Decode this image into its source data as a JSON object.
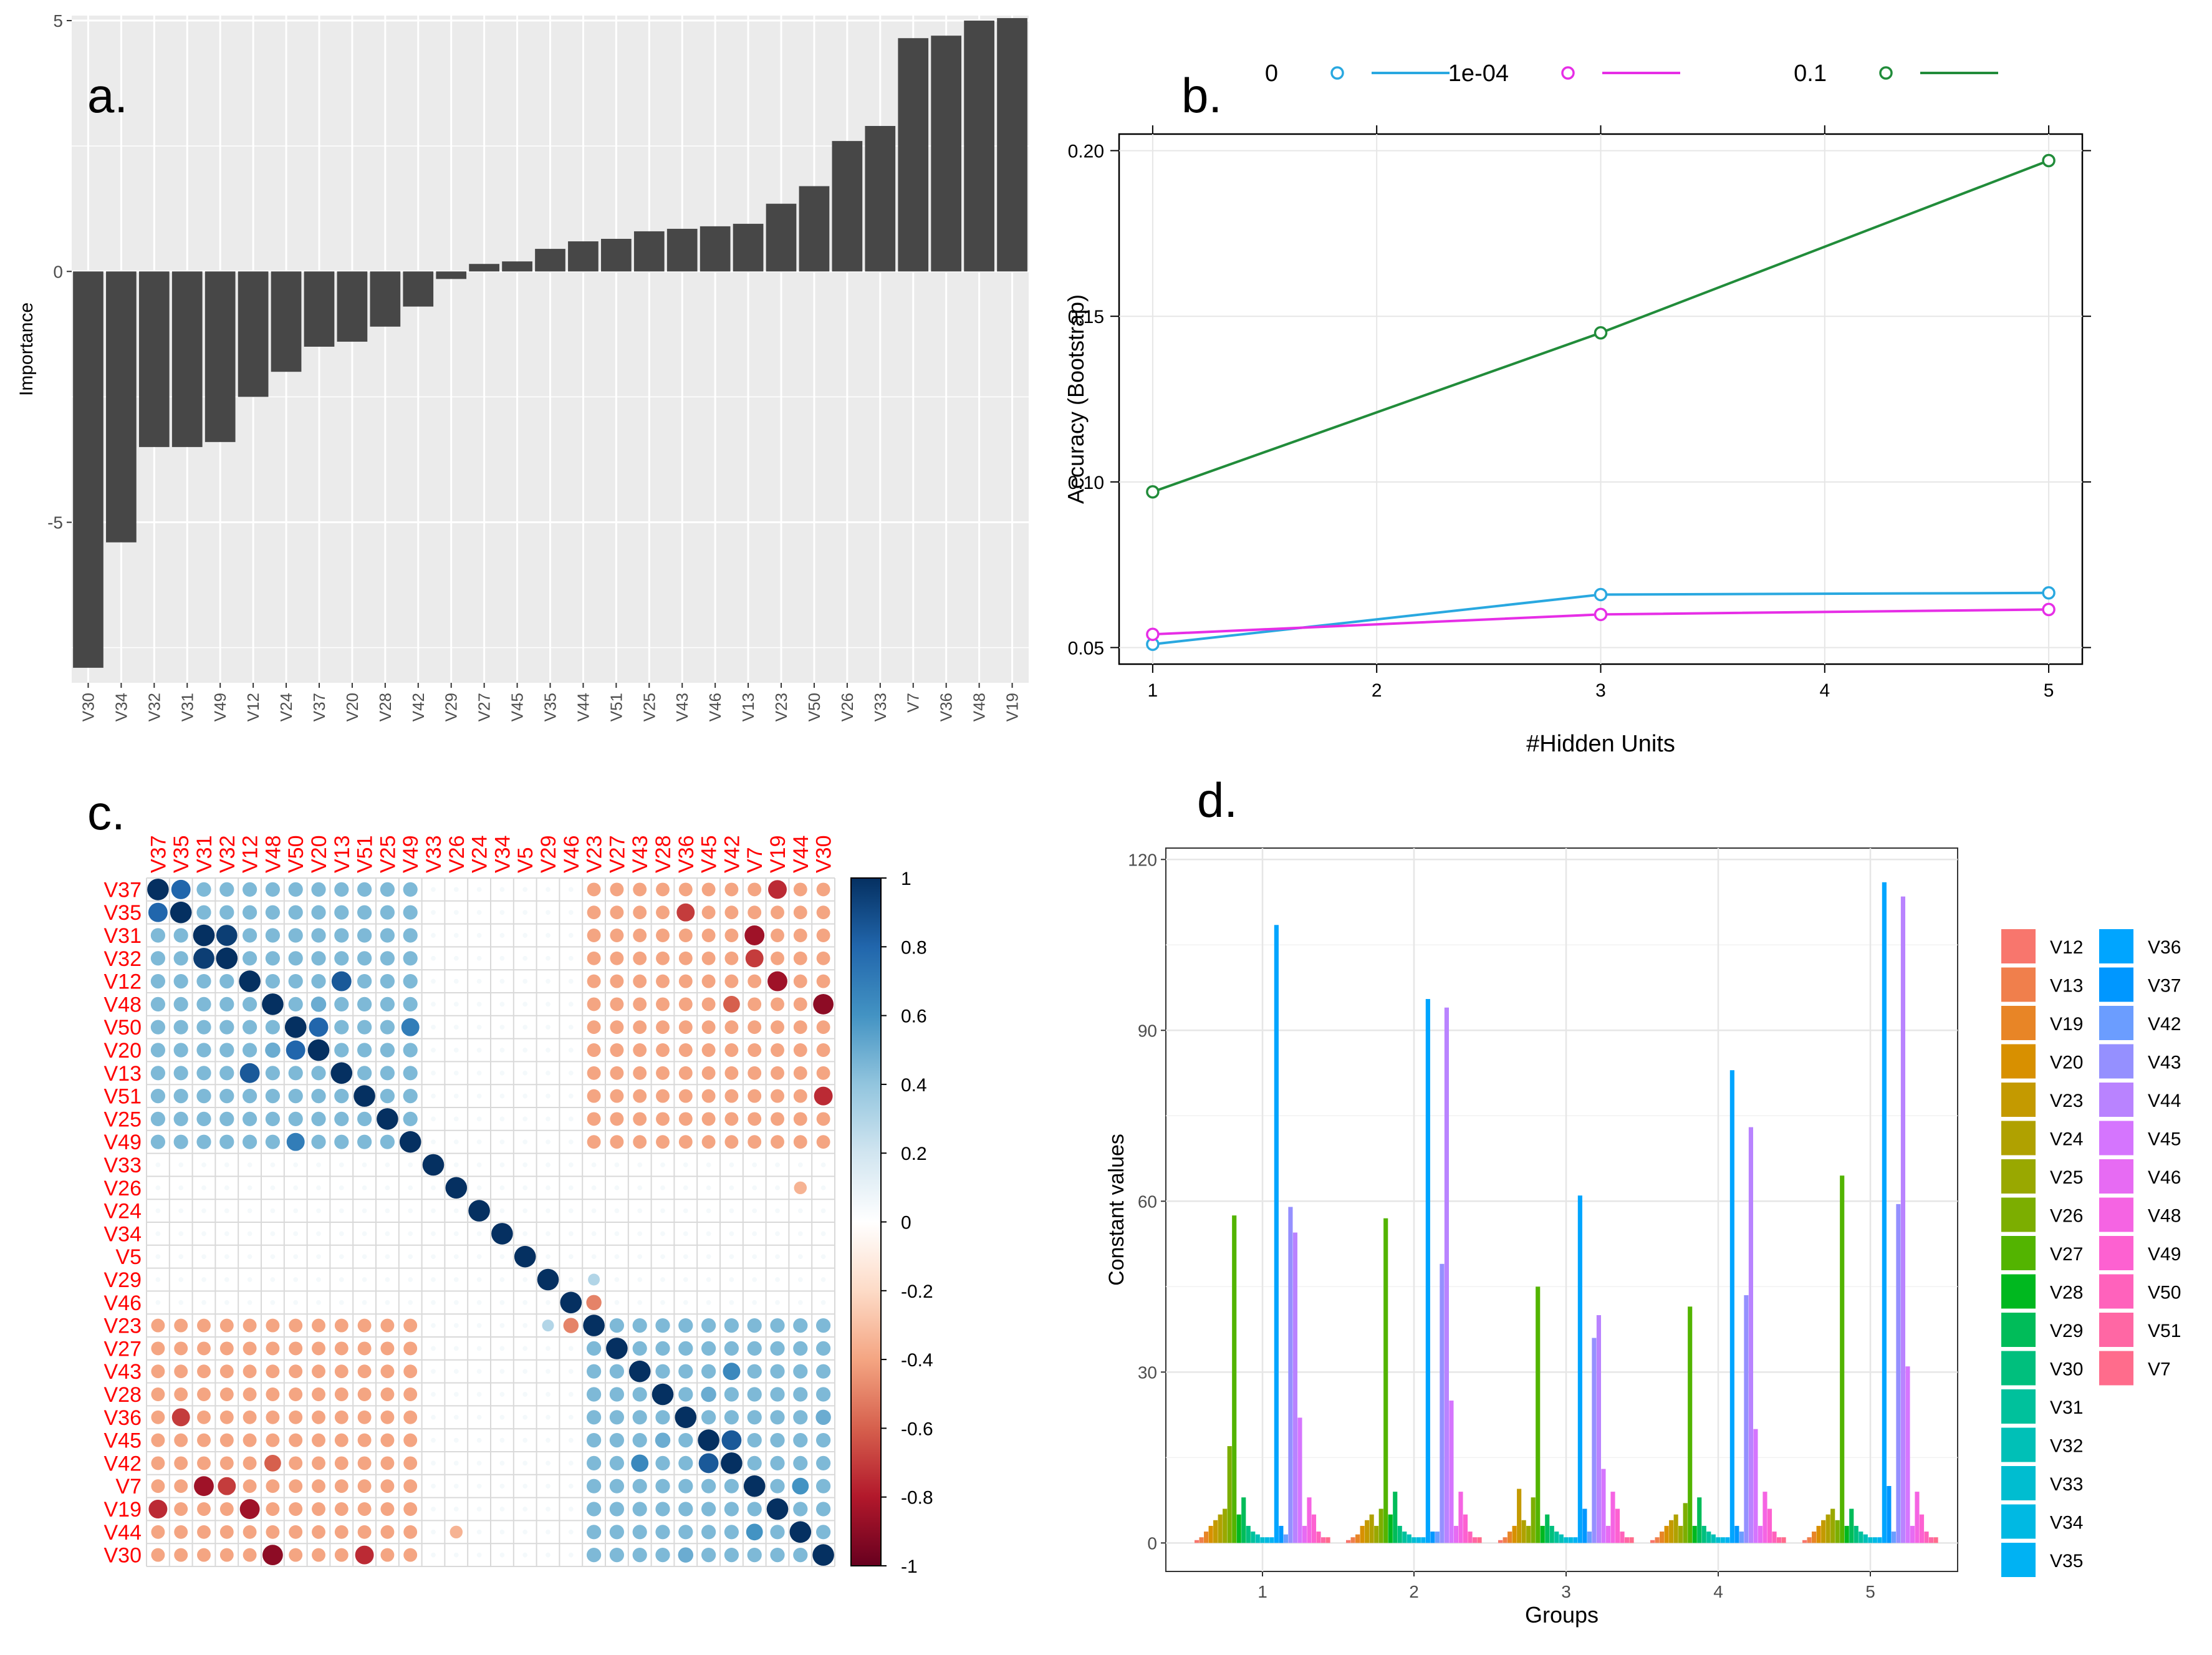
{
  "panel_labels": {
    "a": "a.",
    "b": "b.",
    "c": "c.",
    "d": "d."
  },
  "chart_data": [
    {
      "panel": "a",
      "type": "bar",
      "title": "",
      "xlabel": "",
      "ylabel": "Importance",
      "ylim": [
        -8.2,
        5.1
      ],
      "yticks": [
        -5,
        0,
        5
      ],
      "categories": [
        "V30",
        "V34",
        "V32",
        "V31",
        "V49",
        "V12",
        "V24",
        "V37",
        "V20",
        "V28",
        "V42",
        "V29",
        "V27",
        "V45",
        "V35",
        "V44",
        "V51",
        "V25",
        "V43",
        "V46",
        "V13",
        "V23",
        "V50",
        "V26",
        "V33",
        "V7",
        "V36",
        "V48",
        "V19"
      ],
      "values": [
        -7.9,
        -5.4,
        -3.5,
        -3.5,
        -3.4,
        -2.5,
        -2.0,
        -1.5,
        -1.4,
        -1.1,
        -0.7,
        -0.15,
        0.15,
        0.2,
        0.45,
        0.6,
        0.65,
        0.8,
        0.85,
        0.9,
        0.95,
        1.35,
        1.7,
        2.6,
        2.9,
        4.65,
        4.7,
        5.0,
        5.05
      ],
      "grid": true
    },
    {
      "panel": "b",
      "type": "line",
      "title": "",
      "xlabel": "#Hidden Units",
      "ylabel": "Accuracy (Bootstrap)",
      "xlim": [
        0.85,
        5.15
      ],
      "ylim": [
        0.045,
        0.205
      ],
      "xticks": [
        1,
        2,
        3,
        4,
        5
      ],
      "yticks": [
        0.05,
        0.1,
        0.15,
        0.2
      ],
      "ytick_labels": [
        "0.05",
        "0.10",
        "0.15",
        "0.20"
      ],
      "x": [
        1,
        3,
        5
      ],
      "series": [
        {
          "name": "0",
          "color": "#29a8e0",
          "values": [
            0.051,
            0.066,
            0.0665
          ]
        },
        {
          "name": "1e-04",
          "color": "#e62ee6",
          "values": [
            0.054,
            0.06,
            0.0615
          ]
        },
        {
          "name": "0.1",
          "color": "#218c3a",
          "values": [
            0.097,
            0.145,
            0.197
          ]
        }
      ],
      "legend_position": "top"
    },
    {
      "panel": "c",
      "type": "heatmap",
      "title": "",
      "variables": [
        "V37",
        "V35",
        "V31",
        "V32",
        "V12",
        "V48",
        "V50",
        "V20",
        "V13",
        "V51",
        "V25",
        "V49",
        "V33",
        "V26",
        "V24",
        "V34",
        "V5",
        "V29",
        "V46",
        "V23",
        "V27",
        "V43",
        "V28",
        "V36",
        "V45",
        "V42",
        "V7",
        "V19",
        "V44",
        "V30"
      ],
      "block_a": [
        "V37",
        "V35",
        "V31",
        "V32",
        "V12",
        "V48",
        "V50",
        "V20",
        "V13",
        "V51",
        "V25",
        "V49"
      ],
      "block_b": [
        "V23",
        "V27",
        "V43",
        "V28",
        "V36",
        "V45",
        "V42",
        "V7",
        "V19",
        "V44",
        "V30"
      ],
      "within_a": 0.45,
      "within_b": 0.45,
      "between": -0.4,
      "other": 0.05,
      "pairs": [
        {
          "a": "V31",
          "b": "V32",
          "r": 0.95
        },
        {
          "a": "V37",
          "b": "V35",
          "r": 0.8
        },
        {
          "a": "V12",
          "b": "V13",
          "r": 0.85
        },
        {
          "a": "V50",
          "b": "V20",
          "r": 0.8
        },
        {
          "a": "V50",
          "b": "V49",
          "r": 0.7
        },
        {
          "a": "V48",
          "b": "V20",
          "r": 0.5
        },
        {
          "a": "V45",
          "b": "V42",
          "r": 0.85
        },
        {
          "a": "V7",
          "b": "V44",
          "r": 0.6
        },
        {
          "a": "V43",
          "b": "V42",
          "r": 0.65
        },
        {
          "a": "V36",
          "b": "V30",
          "r": 0.5
        },
        {
          "a": "V28",
          "b": "V45",
          "r": 0.5
        },
        {
          "a": "V37",
          "b": "V19",
          "r": -0.75
        },
        {
          "a": "V12",
          "b": "V19",
          "r": -0.85
        },
        {
          "a": "V48",
          "b": "V30",
          "r": -0.9
        },
        {
          "a": "V31",
          "b": "V7",
          "r": -0.85
        },
        {
          "a": "V32",
          "b": "V7",
          "r": -0.7
        },
        {
          "a": "V51",
          "b": "V30",
          "r": -0.75
        },
        {
          "a": "V35",
          "b": "V36",
          "r": -0.7
        },
        {
          "a": "V48",
          "b": "V42",
          "r": -0.6
        },
        {
          "a": "V46",
          "b": "V23",
          "r": -0.5
        },
        {
          "a": "V29",
          "b": "V23",
          "r": 0.3
        },
        {
          "a": "V26",
          "b": "V44",
          "r": -0.35
        }
      ],
      "colorbar_ticks": [
        "1",
        "0.8",
        "0.6",
        "0.4",
        "0.2",
        "0",
        "-0.2",
        "-0.4",
        "-0.6",
        "-0.8",
        "-1"
      ]
    },
    {
      "panel": "d",
      "type": "bar",
      "title": "",
      "xlabel": "Groups",
      "ylabel": "Constant values",
      "ylim": [
        -5,
        122
      ],
      "yticks": [
        0,
        30,
        60,
        90,
        120
      ],
      "categories": [
        "1",
        "2",
        "3",
        "4",
        "5"
      ],
      "series_names": [
        "V12",
        "V13",
        "V19",
        "V20",
        "V23",
        "V24",
        "V25",
        "V26",
        "V27",
        "V28",
        "V29",
        "V30",
        "V31",
        "V32",
        "V33",
        "V34",
        "V35",
        "V36",
        "V37",
        "V42",
        "V43",
        "V44",
        "V45",
        "V46",
        "V48",
        "V49",
        "V50",
        "V51",
        "V7"
      ],
      "series_colors": [
        "#f8766d",
        "#f07f4c",
        "#e88526",
        "#d89000",
        "#c49a00",
        "#b0a100",
        "#99a800",
        "#7cae00",
        "#53b400",
        "#00b81f",
        "#00bc59",
        "#00bf7d",
        "#00c19c",
        "#00c0b7",
        "#00bdd0",
        "#00b9e3",
        "#00b2f3",
        "#00a5ff",
        "#0097ff",
        "#6b9dff",
        "#9590ff",
        "#b983ff",
        "#d575fe",
        "#e76bf3",
        "#f564e3",
        "#fd61d1",
        "#ff62bc",
        "#ff67a4",
        "#ff6c8c"
      ],
      "values": [
        [
          0.5,
          1,
          2,
          3,
          4,
          5,
          6,
          17,
          57.5,
          5,
          8,
          3,
          2,
          1.5,
          1,
          1,
          1,
          108.5,
          3,
          1.5,
          59,
          54.5,
          22,
          3,
          8,
          5,
          2,
          1,
          1
        ],
        [
          0.5,
          1,
          1.5,
          3,
          4,
          5,
          3,
          6,
          57,
          5,
          9,
          3,
          2,
          1.5,
          1,
          1,
          1,
          95.5,
          2,
          2,
          49,
          94,
          25,
          3,
          9,
          5,
          2,
          1,
          1
        ],
        [
          0.5,
          1,
          2,
          3,
          9.5,
          4,
          3,
          8,
          45,
          3,
          5,
          3,
          2,
          1.5,
          1,
          1,
          1,
          61,
          6,
          2,
          36,
          40,
          13,
          3,
          9,
          6,
          2,
          1,
          1
        ],
        [
          0.5,
          1,
          2,
          3,
          4,
          5,
          3,
          7,
          41.5,
          3,
          8,
          3,
          2,
          1.5,
          1,
          1,
          1,
          83,
          3,
          2,
          43.5,
          73,
          20,
          3,
          9,
          6,
          2,
          1,
          1
        ],
        [
          0.5,
          1,
          2,
          3,
          4,
          5,
          6,
          4,
          64.5,
          3,
          6,
          3,
          2,
          1.5,
          1,
          1,
          1,
          116,
          10,
          2,
          59.5,
          113.5,
          31,
          3,
          9,
          5,
          2,
          1,
          1
        ]
      ]
    }
  ]
}
